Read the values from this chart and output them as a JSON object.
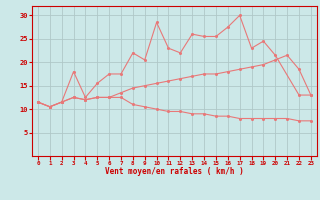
{
  "x": [
    0,
    1,
    2,
    3,
    4,
    5,
    6,
    7,
    8,
    9,
    10,
    11,
    12,
    13,
    14,
    15,
    16,
    17,
    18,
    19,
    20,
    21,
    22,
    23
  ],
  "rafales": [
    11.5,
    10.5,
    11.5,
    18,
    12.5,
    15.5,
    17.5,
    17.5,
    22,
    20.5,
    28.5,
    23,
    22,
    26,
    25.5,
    25.5,
    27.5,
    30,
    23,
    24.5,
    21.5,
    null,
    13,
    13
  ],
  "moyen": [
    11.5,
    10.5,
    11.5,
    12.5,
    12,
    12.5,
    12.5,
    13.5,
    14.5,
    15.0,
    15.5,
    16.0,
    16.5,
    17.0,
    17.5,
    17.5,
    18.0,
    18.5,
    19.0,
    19.5,
    20.5,
    21.5,
    18.5,
    13
  ],
  "min_line": [
    11.5,
    10.5,
    11.5,
    12.5,
    12,
    12.5,
    12.5,
    12.5,
    11,
    10.5,
    10,
    9.5,
    9.5,
    9,
    9,
    8.5,
    8.5,
    8,
    8,
    8,
    8,
    8,
    7.5,
    7.5
  ],
  "background": "#cce8e8",
  "line_color": "#e87878",
  "grid_color": "#b0c8c8",
  "xlabel": "Vent moyen/en rafales ( km/h )",
  "ylim": [
    0,
    32
  ],
  "xlim": [
    -0.5,
    23.5
  ],
  "yticks": [
    5,
    10,
    15,
    20,
    25,
    30
  ],
  "xticks": [
    0,
    1,
    2,
    3,
    4,
    5,
    6,
    7,
    8,
    9,
    10,
    11,
    12,
    13,
    14,
    15,
    16,
    17,
    18,
    19,
    20,
    21,
    22,
    23
  ]
}
